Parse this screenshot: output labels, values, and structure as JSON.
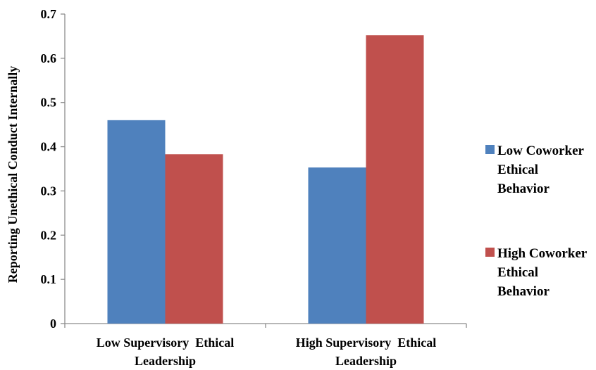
{
  "chart_data": {
    "type": "bar",
    "categories": [
      [
        "Low Supervisory  Ethical",
        "Leadership"
      ],
      [
        "High Supervisory  Ethical",
        "Leadership"
      ]
    ],
    "series": [
      {
        "name": [
          "Low Coworker",
          "Ethical",
          "Behavior"
        ],
        "color": "#4f81bd",
        "values": [
          0.46,
          0.353
        ]
      },
      {
        "name": [
          "High Coworker",
          "Ethical",
          "Behavior"
        ],
        "color": "#c0504d",
        "values": [
          0.383,
          0.652
        ]
      }
    ],
    "ylabel": "Reporting Unethical Conduct Internally",
    "xlabel": "",
    "title": "",
    "ylim": [
      0,
      0.7
    ],
    "yticks": [
      0,
      0.1,
      0.2,
      0.3,
      0.4,
      0.5,
      0.6,
      0.7
    ],
    "ytick_labels": [
      "0",
      "0.1",
      "0.2",
      "0.3",
      "0.4",
      "0.5",
      "0.6",
      "0.7"
    ],
    "grid": false,
    "legend": "right"
  }
}
